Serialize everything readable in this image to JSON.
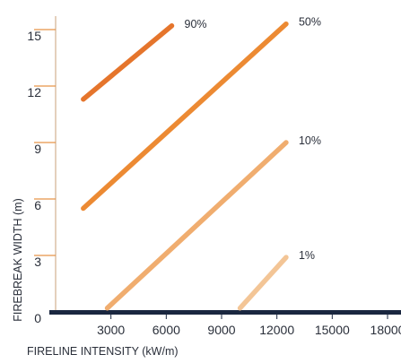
{
  "chart_data": {
    "type": "line",
    "xlabel": "FIRELINE INTENSITY (kW/m)",
    "ylabel": "FIREBREAK WIDTH (m)",
    "xlim": [
      0,
      18000
    ],
    "ylim": [
      0,
      15
    ],
    "xticks": [
      "3000",
      "6000",
      "9000",
      "12000",
      "15000",
      "18000"
    ],
    "yticks": [
      "0",
      "3",
      "6",
      "9",
      "12",
      "15"
    ],
    "grid": false,
    "legend": "none",
    "series": [
      {
        "name": "90%",
        "color": "#e5752c",
        "x": [
          1500,
          6300
        ],
        "y": [
          11.3,
          15.2
        ]
      },
      {
        "name": "50%",
        "color": "#ec8a33",
        "x": [
          1500,
          12500
        ],
        "y": [
          5.5,
          15.3
        ]
      },
      {
        "name": "10%",
        "color": "#f0ad6f",
        "x": [
          2800,
          12500
        ],
        "y": [
          0.2,
          9.0
        ]
      },
      {
        "name": "1%",
        "color": "#f3c596",
        "x": [
          10000,
          12500
        ],
        "y": [
          0.2,
          2.9
        ]
      }
    ],
    "colors": {
      "axis": "#1a2740",
      "tick": "#e69448",
      "text": "#2a2f3a"
    }
  }
}
